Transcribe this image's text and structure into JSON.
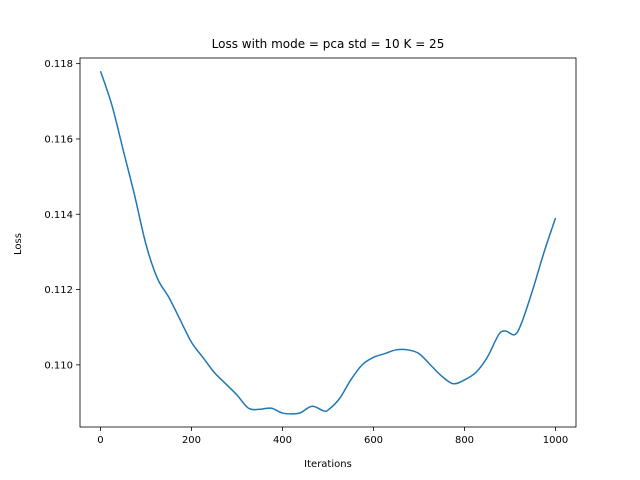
{
  "chart_data": {
    "type": "line",
    "title": "Loss with mode = pca std = 10 K = 25",
    "xlabel": "Iterations",
    "ylabel": "Loss",
    "xlim": [
      -45,
      1045
    ],
    "ylim": [
      0.10835,
      0.11815
    ],
    "xticks": [
      0,
      200,
      400,
      600,
      800,
      1000
    ],
    "yticks": [
      0.11,
      0.112,
      0.114,
      0.116,
      0.118
    ],
    "xtick_labels": [
      "0",
      "200",
      "400",
      "600",
      "800",
      "1000"
    ],
    "ytick_labels": [
      "0.110",
      "0.112",
      "0.114",
      "0.116",
      "0.118"
    ],
    "grid": false,
    "series_color": "#1f77b4",
    "series": [
      {
        "x": [
          0,
          25,
          50,
          75,
          100,
          125,
          150,
          175,
          200,
          225,
          250,
          275,
          300,
          325,
          350,
          375,
          400,
          425,
          440,
          465,
          490,
          500,
          525,
          550,
          575,
          600,
          625,
          650,
          675,
          700,
          725,
          750,
          775,
          800,
          825,
          850,
          875,
          890,
          910,
          925,
          950,
          975,
          1000
        ],
        "y": [
          0.1178,
          0.1169,
          0.1157,
          0.1145,
          0.1132,
          0.1123,
          0.1118,
          0.1112,
          0.1106,
          0.1102,
          0.1098,
          0.1095,
          0.1092,
          0.10885,
          0.10882,
          0.10885,
          0.10872,
          0.1087,
          0.10873,
          0.1089,
          0.10878,
          0.1088,
          0.1091,
          0.1096,
          0.11,
          0.1102,
          0.1103,
          0.1104,
          0.1104,
          0.1103,
          0.11,
          0.1097,
          0.1095,
          0.1096,
          0.1098,
          0.1102,
          0.1108,
          0.1109,
          0.1108,
          0.1111,
          0.112,
          0.113,
          0.1139
        ]
      }
    ]
  }
}
